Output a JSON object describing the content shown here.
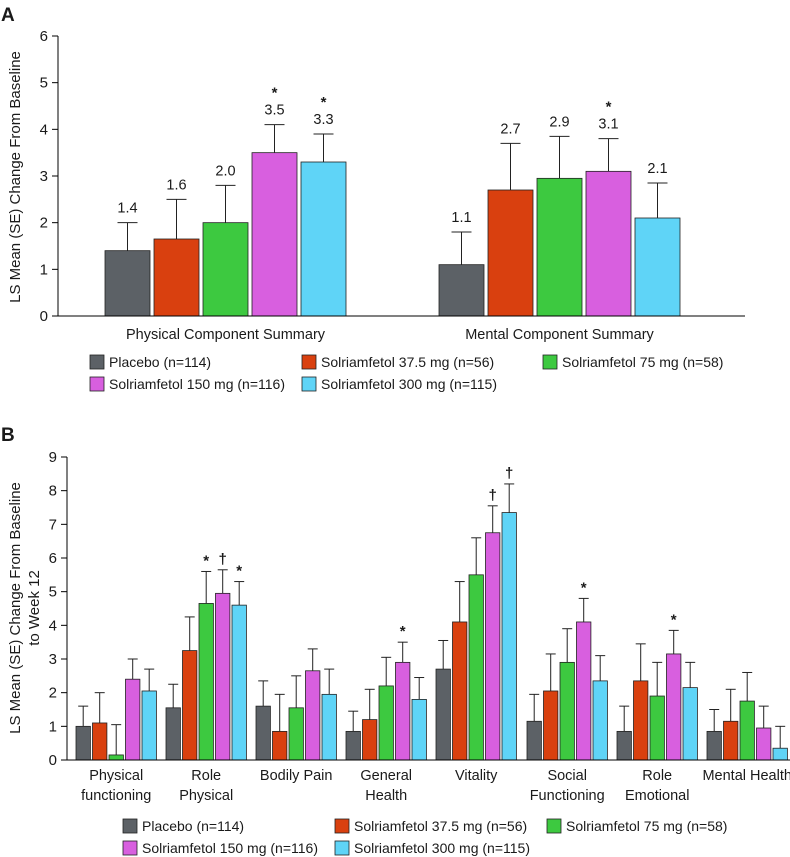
{
  "colors": {
    "placebo": "#5c6166",
    "s37": "#d9400f",
    "s75": "#3dc940",
    "s150": "#d85fdf",
    "s300": "#5fd4f7"
  },
  "chart_data": [
    {
      "type": "bar",
      "panel_label": "A",
      "ylabel": "LS Mean (SE) Change From Baseline",
      "ylim": [
        0,
        6
      ],
      "yticks": [
        "0",
        "1",
        "2",
        "3",
        "4",
        "5",
        "6"
      ],
      "categories": [
        "Physical Component Summary",
        "Mental Component Summary"
      ],
      "series": [
        {
          "name": "Placebo (n=114)",
          "color_key": "placebo",
          "values": [
            1.4,
            1.1
          ],
          "errors": [
            0.6,
            0.7
          ],
          "labels": [
            "1.4",
            "1.1"
          ],
          "marks": [
            "",
            ""
          ]
        },
        {
          "name": "Solriamfetol 37.5 mg (n=56)",
          "color_key": "s37",
          "values": [
            1.65,
            2.7
          ],
          "errors": [
            0.85,
            1.0
          ],
          "labels": [
            "1.6",
            "2.7"
          ],
          "marks": [
            "",
            ""
          ]
        },
        {
          "name": "Solriamfetol 75 mg (n=58)",
          "color_key": "s75",
          "values": [
            2.0,
            2.95
          ],
          "errors": [
            0.8,
            0.9
          ],
          "labels": [
            "2.0",
            "2.9"
          ],
          "marks": [
            "",
            ""
          ]
        },
        {
          "name": "Solriamfetol 150 mg (n=116)",
          "color_key": "s150",
          "values": [
            3.5,
            3.1
          ],
          "errors": [
            0.6,
            0.7
          ],
          "labels": [
            "3.5",
            "3.1"
          ],
          "marks": [
            "*",
            "*"
          ]
        },
        {
          "name": "Solriamfetol 300 mg (n=115)",
          "color_key": "s300",
          "values": [
            3.3,
            2.1
          ],
          "errors": [
            0.6,
            0.75
          ],
          "labels": [
            "3.3",
            "2.1"
          ],
          "marks": [
            "*",
            ""
          ]
        }
      ],
      "legend": [
        "Placebo (n=114)",
        "Solriamfetol 37.5 mg (n=56)",
        "Solriamfetol 75 mg (n=58)",
        "Solriamfetol 150 mg (n=116)",
        "Solriamfetol 300 mg (n=115)"
      ]
    },
    {
      "type": "bar",
      "panel_label": "B",
      "ylabel": [
        "LS Mean (SE) Change From Baseline",
        "to Week 12"
      ],
      "ylim": [
        0,
        9
      ],
      "yticks": [
        "0",
        "1",
        "2",
        "3",
        "4",
        "5",
        "6",
        "7",
        "8",
        "9"
      ],
      "categories": [
        [
          "Physical",
          "functioning"
        ],
        [
          "Role",
          "Physical"
        ],
        [
          "Bodily Pain"
        ],
        [
          "General",
          "Health"
        ],
        [
          "Vitality"
        ],
        [
          "Social",
          "Functioning"
        ],
        [
          "Role",
          "Emotional"
        ],
        [
          "Mental Health"
        ]
      ],
      "series": [
        {
          "name": "Placebo (n=114)",
          "color_key": "placebo",
          "values": [
            1.0,
            1.55,
            1.6,
            0.85,
            2.7,
            1.15,
            0.85,
            0.85
          ],
          "errors": [
            0.6,
            0.7,
            0.75,
            0.6,
            0.85,
            0.8,
            0.75,
            0.65
          ],
          "marks": [
            "",
            "",
            "",
            "",
            "",
            "",
            "",
            ""
          ]
        },
        {
          "name": "Solriamfetol 37.5 mg (n=56)",
          "color_key": "s37",
          "values": [
            1.1,
            3.25,
            0.85,
            1.2,
            4.1,
            2.05,
            2.35,
            1.15
          ],
          "errors": [
            0.9,
            1.0,
            1.1,
            0.9,
            1.2,
            1.1,
            1.1,
            0.95
          ],
          "marks": [
            "",
            "",
            "",
            "",
            "",
            "",
            "",
            ""
          ]
        },
        {
          "name": "Solriamfetol 75 mg (n=58)",
          "color_key": "s75",
          "values": [
            0.15,
            4.65,
            1.55,
            2.2,
            5.5,
            2.9,
            1.9,
            1.75
          ],
          "errors": [
            0.9,
            0.95,
            0.95,
            0.85,
            1.1,
            1.0,
            1.0,
            0.85
          ],
          "marks": [
            "",
            "*",
            "",
            "",
            "",
            "",
            "",
            ""
          ]
        },
        {
          "name": "Solriamfetol 150 mg (n=116)",
          "color_key": "s150",
          "values": [
            2.4,
            4.95,
            2.65,
            2.9,
            6.75,
            4.1,
            3.15,
            0.95
          ],
          "errors": [
            0.6,
            0.7,
            0.65,
            0.6,
            0.8,
            0.7,
            0.7,
            0.65
          ],
          "marks": [
            "",
            "†",
            "",
            "*",
            "†",
            "*",
            "*",
            ""
          ]
        },
        {
          "name": "Solriamfetol 300 mg (n=115)",
          "color_key": "s300",
          "values": [
            2.05,
            4.6,
            1.95,
            1.8,
            7.35,
            2.35,
            2.15,
            0.35
          ],
          "errors": [
            0.65,
            0.7,
            0.75,
            0.65,
            0.85,
            0.75,
            0.75,
            0.65
          ],
          "marks": [
            "",
            "*",
            "",
            "",
            "†",
            "",
            "",
            ""
          ]
        }
      ],
      "legend": [
        "Placebo (n=114)",
        "Solriamfetol 37.5 mg (n=56)",
        "Solriamfetol 75 mg (n=58)",
        "Solriamfetol 150 mg (n=116)",
        "Solriamfetol 300 mg (n=115)"
      ]
    }
  ]
}
